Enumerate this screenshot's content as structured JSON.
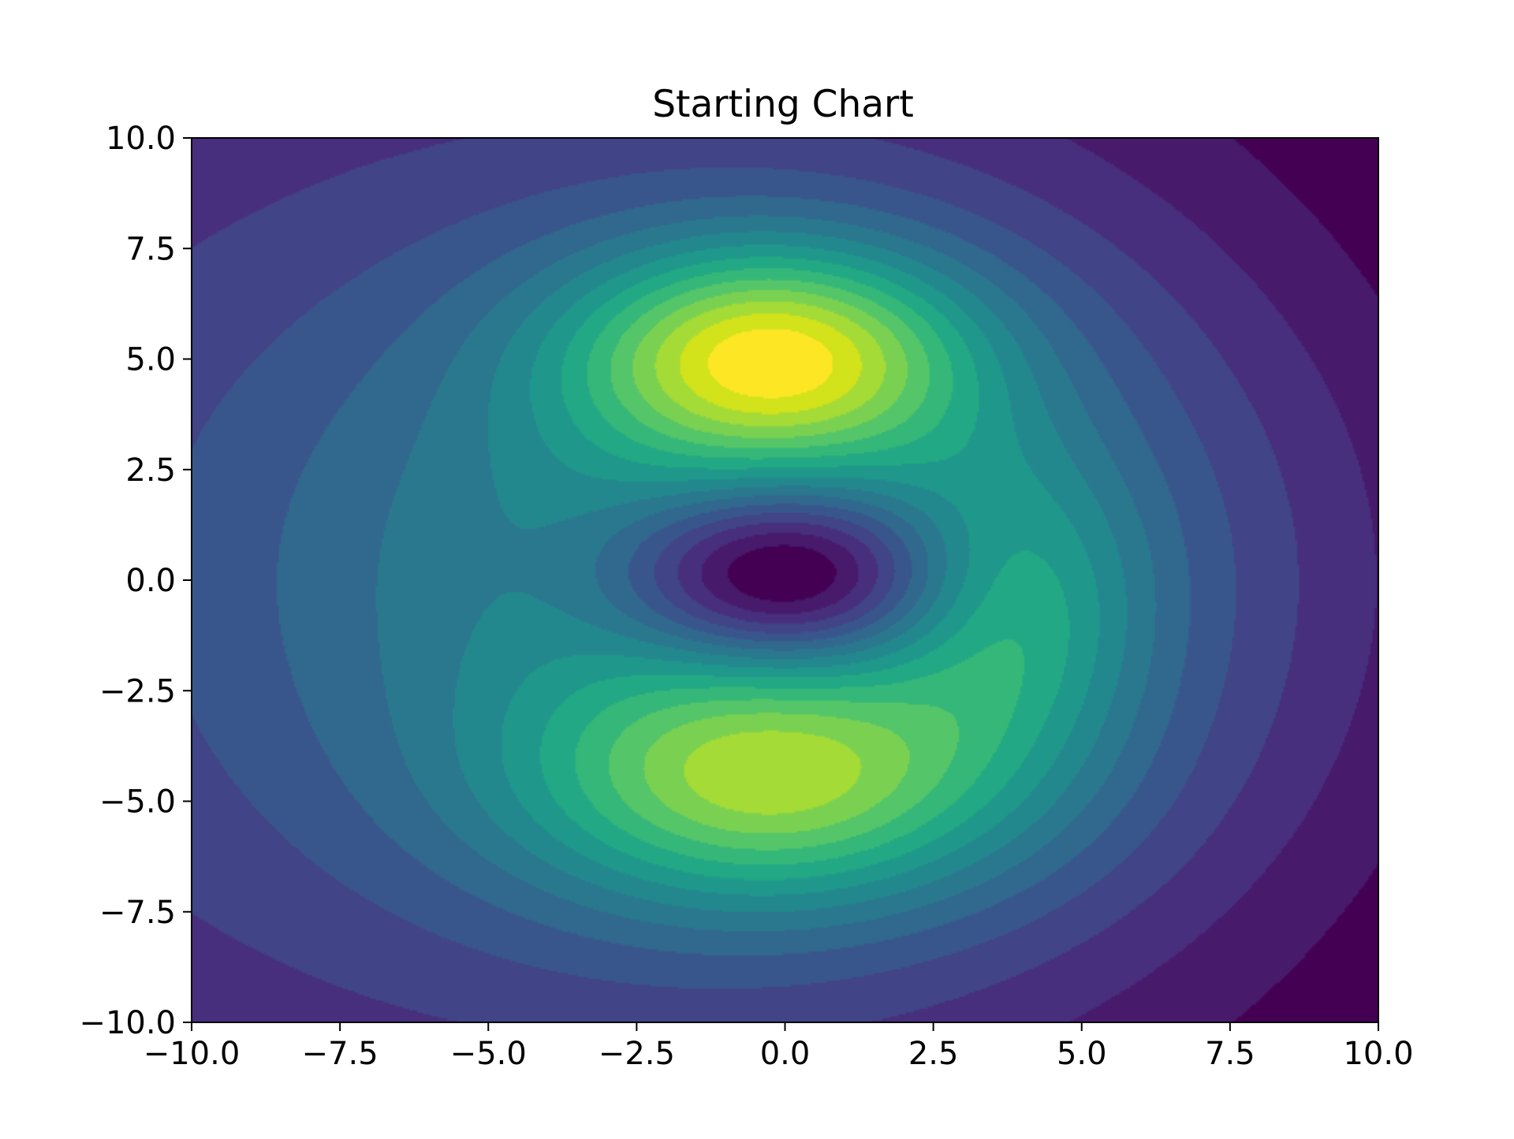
{
  "chart_data": {
    "type": "contourf",
    "title": "Starting Chart",
    "xlabel": "",
    "ylabel": "",
    "xlim": [
      -10.0,
      10.0
    ],
    "ylim": [
      -10.0,
      10.0
    ],
    "x_ticks": [
      "−10.0",
      "−7.5",
      "−5.0",
      "−2.5",
      "0.0",
      "2.5",
      "5.0",
      "7.5",
      "10.0"
    ],
    "y_ticks": [
      "10.0",
      "7.5",
      "5.0",
      "2.5",
      "0.0",
      "−2.5",
      "−5.0",
      "−7.5",
      "−10.0"
    ],
    "x_tick_values": [
      -10,
      -7.5,
      -5,
      -2.5,
      0,
      2.5,
      5,
      7.5,
      10
    ],
    "y_tick_values": [
      10,
      7.5,
      5,
      2.5,
      0,
      -2.5,
      -5,
      -7.5,
      -10
    ],
    "colormap": "viridis",
    "levels": 16,
    "grid": false,
    "legend": "none",
    "features": [
      {
        "kind": "peak",
        "x": -0.2,
        "y": 5.1,
        "level": "max"
      },
      {
        "kind": "peak",
        "x": -0.2,
        "y": -4.6,
        "level": "high"
      },
      {
        "kind": "trough",
        "x": 0.0,
        "y": 0.1,
        "level": "min"
      },
      {
        "kind": "ridge",
        "x": 3.9,
        "y": -0.6,
        "level": "mid"
      }
    ],
    "palette": [
      "#440154",
      "#481a6c",
      "#472f7d",
      "#414487",
      "#39568c",
      "#31688e",
      "#2a788e",
      "#23888e",
      "#1f988b",
      "#22a884",
      "#35b779",
      "#54c568",
      "#7ad151",
      "#a5db36",
      "#d2e21b",
      "#fde725"
    ]
  }
}
